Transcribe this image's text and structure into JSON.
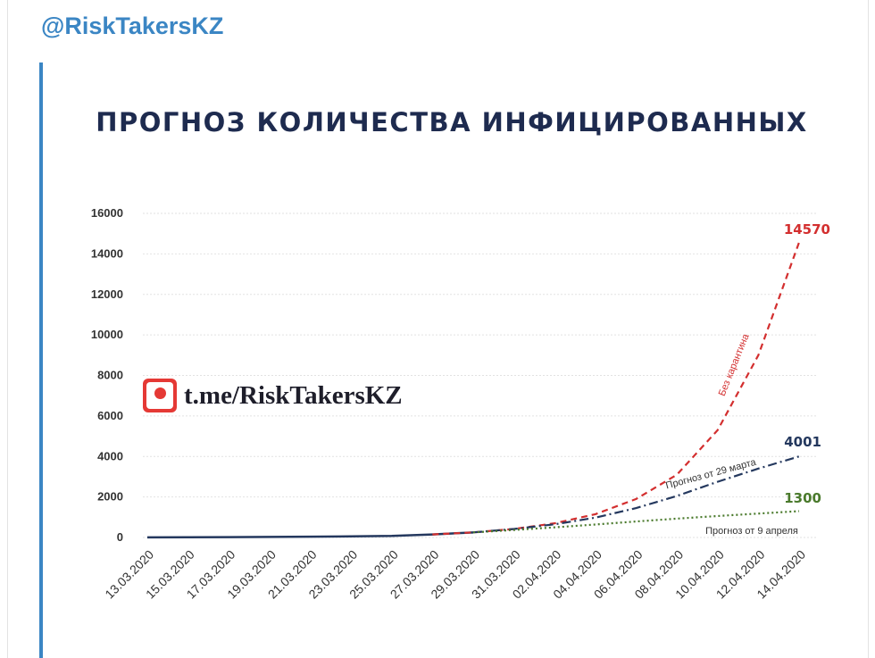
{
  "header": {
    "channel": "@RiskTakersKZ"
  },
  "watermark": {
    "text": "t.me/RiskTakersKZ"
  },
  "colors": {
    "accent": "#3b86c4",
    "title": "#1e2b4f",
    "red": "#d32f2f",
    "navy": "#24385e",
    "green": "#4a7a2c"
  },
  "chart_data": {
    "type": "line",
    "title": "ПРОГНОЗ КОЛИЧЕСТВА ИНФИЦИРОВАННЫХ",
    "xlabel": "",
    "ylabel": "",
    "ylim": [
      0,
      16000
    ],
    "yticks": [
      "0",
      "2000",
      "4000",
      "6000",
      "8000",
      "10000",
      "12000",
      "14000",
      "16000"
    ],
    "categories": [
      "13.03.2020",
      "15.03.2020",
      "17.03.2020",
      "19.03.2020",
      "21.03.2020",
      "23.03.2020",
      "25.03.2020",
      "27.03.2020",
      "29.03.2020",
      "31.03.2020",
      "02.04.2020",
      "04.04.2020",
      "06.04.2020",
      "08.04.2020",
      "10.04.2020",
      "12.04.2020",
      "14.04.2020"
    ],
    "grid": true,
    "series": [
      {
        "name": "",
        "style": "solid",
        "color": "#24385e",
        "x": [
          0,
          1,
          2,
          3,
          4,
          5,
          6,
          7,
          8
        ],
        "values": [
          6,
          9,
          15,
          25,
          40,
          55,
          75,
          150,
          250
        ]
      },
      {
        "name": "Без карантина",
        "style": "dashed",
        "color": "#d32f2f",
        "x": [
          7,
          8,
          9,
          10,
          11,
          12,
          13,
          14,
          15,
          16
        ],
        "values": [
          150,
          250,
          420,
          700,
          1150,
          1900,
          3100,
          5300,
          9000,
          14570
        ],
        "end_label": "14570"
      },
      {
        "name": "Прогноз от 29 марта",
        "style": "dashdot",
        "color": "#24385e",
        "x": [
          8,
          9,
          10,
          11,
          12,
          13,
          14,
          15,
          16
        ],
        "values": [
          250,
          420,
          650,
          980,
          1450,
          2050,
          2750,
          3400,
          4001
        ],
        "end_label": "4001"
      },
      {
        "name": "Прогноз от 9 апреля",
        "style": "dotted",
        "color": "#4a7a2c",
        "x": [
          8,
          9,
          10,
          11,
          12,
          13,
          14,
          15,
          16
        ],
        "values": [
          250,
          370,
          500,
          640,
          790,
          930,
          1060,
          1180,
          1300
        ],
        "end_label": "1300"
      }
    ]
  }
}
